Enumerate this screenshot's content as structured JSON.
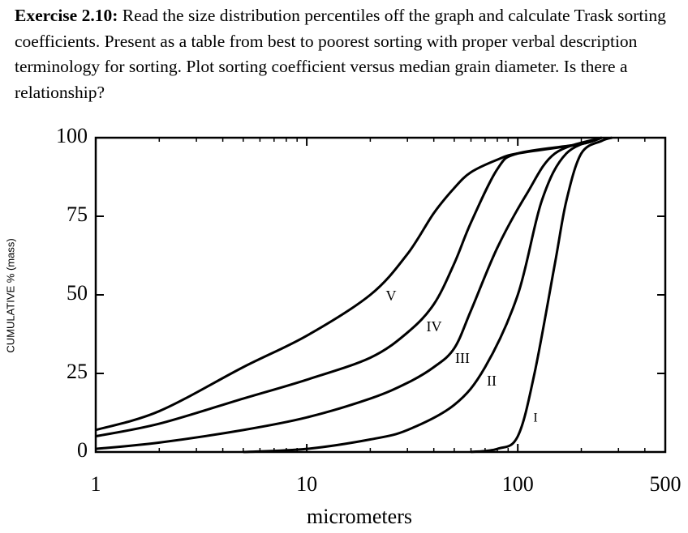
{
  "exercise": {
    "label": "Exercise 2.10:",
    "text": "Read the size distribution percentiles off the graph and calculate Trask sorting coefficients.  Present as a table from best to poorest sorting with proper verbal description terminology for sorting.  Plot sorting coefficient versus median grain diameter.  Is there a relationship?"
  },
  "chart_data": {
    "type": "line",
    "x_label": "micrometers",
    "y_label": "CUMULATIVE % (mass)",
    "x_scale": "log",
    "xlim": [
      1,
      500
    ],
    "xticks": [
      1,
      10,
      100,
      500
    ],
    "ylim": [
      0,
      100
    ],
    "yticks": [
      0,
      25,
      50,
      75,
      100
    ],
    "series": [
      {
        "name": "V",
        "color": "#000000",
        "x": [
          1,
          2,
          5,
          10,
          20,
          30,
          40,
          50,
          60,
          80,
          100,
          200,
          250
        ],
        "values": [
          7,
          13,
          27,
          37,
          50,
          63,
          76,
          84,
          89,
          93,
          95,
          98,
          100
        ]
      },
      {
        "name": "IV",
        "color": "#000000",
        "x": [
          1,
          2,
          5,
          10,
          20,
          30,
          40,
          50,
          60,
          80,
          100,
          200,
          250
        ],
        "values": [
          5,
          9,
          17,
          23,
          30,
          38,
          47,
          60,
          73,
          90,
          95,
          98,
          100
        ]
      },
      {
        "name": "III",
        "color": "#000000",
        "x": [
          1,
          2,
          5,
          10,
          20,
          30,
          40,
          50,
          60,
          80,
          110,
          150,
          250
        ],
        "values": [
          1,
          3,
          7,
          11,
          17,
          22,
          27,
          33,
          45,
          65,
          82,
          95,
          100
        ]
      },
      {
        "name": "II",
        "color": "#000000",
        "x": [
          5,
          10,
          20,
          30,
          50,
          70,
          100,
          130,
          170,
          250
        ],
        "values": [
          0,
          1,
          4,
          7,
          15,
          27,
          50,
          80,
          95,
          100
        ]
      },
      {
        "name": "I",
        "color": "#000000",
        "x": [
          60,
          80,
          100,
          120,
          150,
          170,
          200,
          250,
          280
        ],
        "values": [
          0,
          1,
          5,
          25,
          60,
          80,
          95,
          99,
          100
        ]
      }
    ]
  }
}
